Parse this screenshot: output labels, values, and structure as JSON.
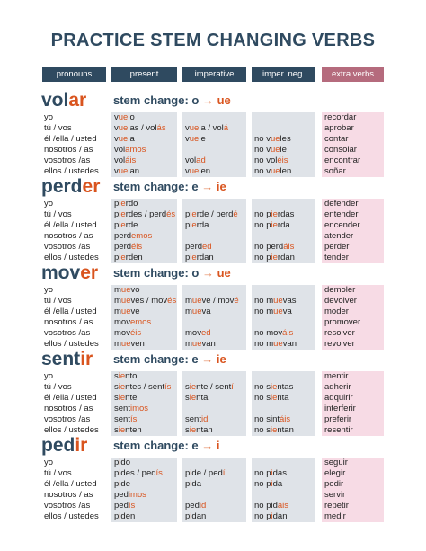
{
  "title": "PRACTICE STEM CHANGING VERBS",
  "headers": {
    "pronouns": "pronouns",
    "present": "present",
    "imperative": "imperative",
    "neg": "imper. neg.",
    "extra": "extra verbs"
  },
  "pronouns": [
    "yo",
    "tú / vos",
    "él /ella / usted",
    "nosotros / as",
    "vosotros /as",
    "ellos / ustedes"
  ],
  "colors": {
    "navy": "#2f4a60",
    "accent": "#d9541e",
    "extra_header": "#b56b7d",
    "grey_cell": "#dfe3e8",
    "pink_cell": "#f7dbe5"
  },
  "verbs": [
    {
      "stem": "vol",
      "ending": "ar",
      "change_label": "stem change:",
      "from": "o",
      "arrow": "→",
      "to": "ue",
      "present": [
        [
          "v",
          "ue",
          "lo"
        ],
        [
          "v",
          "ue",
          "las / vol",
          "ás",
          ""
        ],
        [
          "v",
          "ue",
          "la"
        ],
        [
          "vol",
          "amos",
          ""
        ],
        [
          "vol",
          "áis",
          ""
        ],
        [
          "v",
          "ue",
          "lan"
        ]
      ],
      "imperative": [
        [
          ""
        ],
        [
          "v",
          "ue",
          "la / vol",
          "á",
          ""
        ],
        [
          "v",
          "ue",
          "le"
        ],
        [
          ""
        ],
        [
          "vol",
          "ad",
          ""
        ],
        [
          "v",
          "ue",
          "len"
        ]
      ],
      "neg": [
        [
          ""
        ],
        [
          ""
        ],
        [
          "no v",
          "ue",
          "les"
        ],
        [
          "no v",
          "ue",
          "le"
        ],
        [
          "no vol",
          "éis",
          ""
        ],
        [
          "no v",
          "ue",
          "len"
        ]
      ],
      "extra": [
        "recordar",
        "aprobar",
        "contar",
        "consolar",
        "encontrar",
        "soñar"
      ]
    },
    {
      "stem": "perd",
      "ending": "er",
      "change_label": "stem change:",
      "from": "e",
      "arrow": "→",
      "to": "ie",
      "present": [
        [
          "p",
          "ie",
          "rdo"
        ],
        [
          "p",
          "ie",
          "rdes / perd",
          "és",
          ""
        ],
        [
          "p",
          "ie",
          "rde"
        ],
        [
          "perd",
          "emos",
          ""
        ],
        [
          "perd",
          "éis",
          ""
        ],
        [
          "p",
          "ie",
          "rden"
        ]
      ],
      "imperative": [
        [
          ""
        ],
        [
          "p",
          "ie",
          "rde / perd",
          "é",
          ""
        ],
        [
          "p",
          "ie",
          "rda"
        ],
        [
          ""
        ],
        [
          "perd",
          "ed",
          ""
        ],
        [
          "p",
          "ie",
          "rdan"
        ]
      ],
      "neg": [
        [
          ""
        ],
        [
          "no p",
          "ie",
          "rdas"
        ],
        [
          "no p",
          "ie",
          "rda"
        ],
        [
          ""
        ],
        [
          "no perd",
          "áis",
          ""
        ],
        [
          "no p",
          "ie",
          "rdan"
        ]
      ],
      "extra": [
        "defender",
        "entender",
        "encender",
        "atender",
        "perder",
        "tender"
      ]
    },
    {
      "stem": "mov",
      "ending": "er",
      "change_label": "stem change:",
      "from": "o",
      "arrow": "→",
      "to": "ue",
      "present": [
        [
          "m",
          "ue",
          "vo"
        ],
        [
          "m",
          "ue",
          "ves / mov",
          "és",
          ""
        ],
        [
          "m",
          "ue",
          "ve"
        ],
        [
          "mov",
          "emos",
          ""
        ],
        [
          "mov",
          "éis",
          ""
        ],
        [
          "m",
          "ue",
          "ven"
        ]
      ],
      "imperative": [
        [
          ""
        ],
        [
          "m",
          "ue",
          "ve / mov",
          "é",
          ""
        ],
        [
          "m",
          "ue",
          "va"
        ],
        [
          ""
        ],
        [
          "mov",
          "ed",
          ""
        ],
        [
          "m",
          "ue",
          "van"
        ]
      ],
      "neg": [
        [
          ""
        ],
        [
          "no m",
          "ue",
          "vas"
        ],
        [
          "no m",
          "ue",
          "va"
        ],
        [
          ""
        ],
        [
          "no mov",
          "áis",
          ""
        ],
        [
          "no m",
          "ue",
          "van"
        ]
      ],
      "extra": [
        "demoler",
        "devolver",
        "moder",
        "promover",
        "resolver",
        "revolver"
      ]
    },
    {
      "stem": "sent",
      "ending": "ir",
      "change_label": "stem change:",
      "from": "e",
      "arrow": "→",
      "to": "ie",
      "present": [
        [
          "s",
          "ie",
          "nto"
        ],
        [
          "s",
          "ie",
          "ntes / sent",
          "ís",
          ""
        ],
        [
          "s",
          "ie",
          "nte"
        ],
        [
          "sent",
          "imos",
          ""
        ],
        [
          "sent",
          "ís",
          ""
        ],
        [
          "s",
          "ie",
          "nten"
        ]
      ],
      "imperative": [
        [
          ""
        ],
        [
          "s",
          "ie",
          "nte / sent",
          "í",
          ""
        ],
        [
          "s",
          "ie",
          "nta"
        ],
        [
          ""
        ],
        [
          "sent",
          "id",
          ""
        ],
        [
          "s",
          "ie",
          "ntan"
        ]
      ],
      "neg": [
        [
          ""
        ],
        [
          "no s",
          "ie",
          "ntas"
        ],
        [
          "no s",
          "ie",
          "nta"
        ],
        [
          ""
        ],
        [
          "no sint",
          "áis",
          ""
        ],
        [
          "no s",
          "ie",
          "ntan"
        ]
      ],
      "extra": [
        "mentir",
        "adherir",
        "adquirir",
        "interferir",
        "preferir",
        "resentir"
      ]
    },
    {
      "stem": "ped",
      "ending": "ir",
      "change_label": "stem change:",
      "from": "e",
      "arrow": "→",
      "to": "i",
      "present": [
        [
          "p",
          "i",
          "do"
        ],
        [
          "p",
          "i",
          "des / ped",
          "ís",
          ""
        ],
        [
          "p",
          "i",
          "de"
        ],
        [
          "ped",
          "imos",
          ""
        ],
        [
          "ped",
          "ís",
          ""
        ],
        [
          "p",
          "i",
          "den"
        ]
      ],
      "imperative": [
        [
          ""
        ],
        [
          "p",
          "i",
          "de / ped",
          "í",
          ""
        ],
        [
          "p",
          "i",
          "da"
        ],
        [
          ""
        ],
        [
          "ped",
          "id",
          ""
        ],
        [
          "p",
          "i",
          "dan"
        ]
      ],
      "neg": [
        [
          ""
        ],
        [
          "no p",
          "i",
          "das"
        ],
        [
          "no p",
          "i",
          "da"
        ],
        [
          ""
        ],
        [
          "no pid",
          "áis",
          ""
        ],
        [
          "no p",
          "i",
          "dan"
        ]
      ],
      "extra": [
        "seguir",
        "elegir",
        "pedir",
        "servir",
        "repetir",
        "medir"
      ]
    }
  ]
}
